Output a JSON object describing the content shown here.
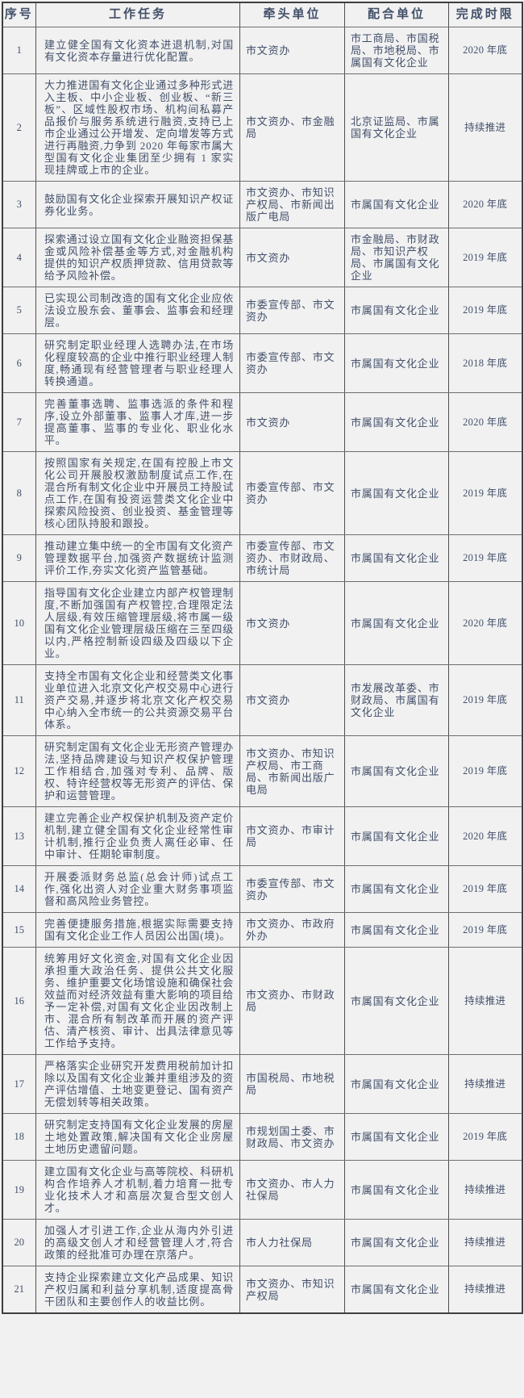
{
  "colors": {
    "background": "#f1f1f1",
    "text": "#43506a",
    "border": "#4f4f4f"
  },
  "table": {
    "headers": [
      "序号",
      "工作任务",
      "牵头单位",
      "配合单位",
      "完成时限"
    ],
    "rows": [
      {
        "no": "1",
        "task": "建立健全国有文化资本进退机制,对国有文化资本存量进行优化配置。",
        "lead": "市文资办",
        "support": "市工商局、市国税局、市地税局、市属国有文化企业",
        "deadline": "2020 年底"
      },
      {
        "no": "2",
        "task": "大力推进国有文化企业通过多种形式进入主板、中小企业板、创业板、“新三板”、区域性股权市场、机构间私募产品报价与服务系统进行融资,支持已上市企业通过公开增发、定向增发等方式进行再融资,力争到 2020 年每家市属大型国有文化企业集团至少拥有 1 家实现挂牌或上市的企业。",
        "lead": "市文资办、市金融局",
        "support": "北京证监局、市属国有文化企业",
        "deadline": "持续推进"
      },
      {
        "no": "3",
        "task": "鼓励国有文化企业探索开展知识产权证券化业务。",
        "lead": "市文资办、市知识产权局、市新闻出版广电局",
        "support": "市属国有文化企业",
        "deadline": "2020 年底"
      },
      {
        "no": "4",
        "task": "探索通过设立国有文化企业融资担保基金或风险补偿基金等方式,对金融机构提供的知识产权质押贷款、信用贷款等给予风险补偿。",
        "lead": "市文资办",
        "support": "市金融局、市财政局、市知识产权局、市属国有文化企业",
        "deadline": "2019 年底"
      },
      {
        "no": "5",
        "task": "已实现公司制改造的国有文化企业应依法设立股东会、董事会、监事会和经理层。",
        "lead": "市委宣传部、市文资办",
        "support": "市属国有文化企业",
        "deadline": "2019 年底"
      },
      {
        "no": "6",
        "task": "研究制定职业经理人选聘办法,在市场化程度较高的企业中推行职业经理人制度,畅通现有经营管理者与职业经理人转换通道。",
        "lead": "市委宣传部、市文资办",
        "support": "市属国有文化企业",
        "deadline": "2018 年底"
      },
      {
        "no": "7",
        "task": "完善董事选聘、监事选派的条件和程序,设立外部董事、监事人才库,进一步提高董事、监事的专业化、职业化水平。",
        "lead": "市文资办",
        "support": "市属国有文化企业",
        "deadline": "2020 年底"
      },
      {
        "no": "8",
        "task": "按照国家有关规定,在国有控股上市文化公司开展股权激励制度试点工作,在混合所有制文化企业中开展员工持股试点工作,在国有投资运营类文化企业中探索风险投资、创业投资、基金管理等核心团队持股和跟投。",
        "lead": "市委宣传部、市文资办",
        "support": "市属国有文化企业",
        "deadline": "2019 年底"
      },
      {
        "no": "9",
        "task": "推动建立集中统一的全市国有文化资产管理数据平台,加强资产数据统计监测评价工作,夯实文化资产监管基础。",
        "lead": "市委宣传部、市文资办、市财政局、市统计局",
        "support": "市属国有文化企业",
        "deadline": "2019 年底"
      },
      {
        "no": "10",
        "task": "指导国有文化企业建立内部产权管理制度,不断加强国有产权管控,合理限定法人层级,有效压缩管理层级,将市属一级国有文化企业管理层级压缩在三至四级以内,严格控制新设四级及四级以下企业。",
        "lead": "市文资办",
        "support": "市属国有文化企业",
        "deadline": "2020 年底"
      },
      {
        "no": "11",
        "task": "支持全市国有文化企业和经营类文化事业单位进入北京文化产权交易中心进行资产交易,并逐步将北京文化产权交易中心纳入全市统一的公共资源交易平台体系。",
        "lead": "市文资办",
        "support": "市发展改革委、市财政局、市属国有文化企业",
        "deadline": "2019 年底"
      },
      {
        "no": "12",
        "task": "研究制定国有文化企业无形资产管理办法,坚持品牌建设与知识产权保护管理工作相结合,加强对专利、品牌、版权、特许经营权等无形资产的评估、保护和运营管理。",
        "lead": "市文资办、市知识产权局、市工商局、市新闻出版广电局",
        "support": "市属国有文化企业",
        "deadline": "2019 年底"
      },
      {
        "no": "13",
        "task": "建立完善企业产权保护机制及资产定价机制,建立健全国有文化企业经常性审计机制,推行企业负责人离任必审、任中审计、任期轮审制度。",
        "lead": "市文资办、市审计局",
        "support": "市属国有文化企业",
        "deadline": "2020 年底"
      },
      {
        "no": "14",
        "task": "开展委派财务总监(总会计师)试点工作,强化出资人对企业重大财务事项监督和高风险业务管控。",
        "lead": "市委宣传部、市文资办",
        "support": "市属国有文化企业",
        "deadline": "2019 年底"
      },
      {
        "no": "15",
        "task": "完善便捷服务措施,根据实际需要支持国有文化企业工作人员因公出国(境)。",
        "lead": "市文资办、市政府外办",
        "support": "市属国有文化企业",
        "deadline": "2019 年底"
      },
      {
        "no": "16",
        "task": "统筹用好文化资金,对国有文化企业因承担重大政治任务、提供公共文化服务、维护重要文化场馆设施和确保社会效益而对经济效益有重大影响的项目给予一定补偿,对国有文化企业因改制上市、混合所有制改革而开展的资产评估、清产核资、审计、出具法律意见等工作给予支持。",
        "lead": "市文资办、市财政局",
        "support": "市属国有文化企业",
        "deadline": "持续推进"
      },
      {
        "no": "17",
        "task": "严格落实企业研究开发费用税前加计扣除以及国有文化企业兼并重组涉及的资产评估增值、土地变更登记、国有资产无偿划转等相关政策。",
        "lead": "市国税局、市地税局",
        "support": "市属国有文化企业",
        "deadline": "持续推进"
      },
      {
        "no": "18",
        "task": "研究制定支持国有文化企业发展的房屋土地处置政策,解决国有文化企业房屋土地历史遗留问题。",
        "lead": "市规划国土委、市财政局、市文资办",
        "support": "市属国有文化企业",
        "deadline": "2019 年底"
      },
      {
        "no": "19",
        "task": "建立国有文化企业与高等院校、科研机构合作培养人才机制,着力培育一批专业化技术人才和高层次复合型文创人才。",
        "lead": "市文资办、市人力社保局",
        "support": "市属国有文化企业",
        "deadline": "持续推进"
      },
      {
        "no": "20",
        "task": "加强人才引进工作,企业从海内外引进的高级文创人才和经营管理人才,符合政策的经批准可办理在京落户。",
        "lead": "市人力社保局",
        "support": "市属国有文化企业",
        "deadline": "持续推进"
      },
      {
        "no": "21",
        "task": "支持企业探索建立文化产品成果、知识产权归属和利益分享机制,适度提高骨干团队和主要创作人的收益比例。",
        "lead": "市文资办、市知识产权局",
        "support": "市属国有文化企业",
        "deadline": "持续推进"
      }
    ]
  }
}
